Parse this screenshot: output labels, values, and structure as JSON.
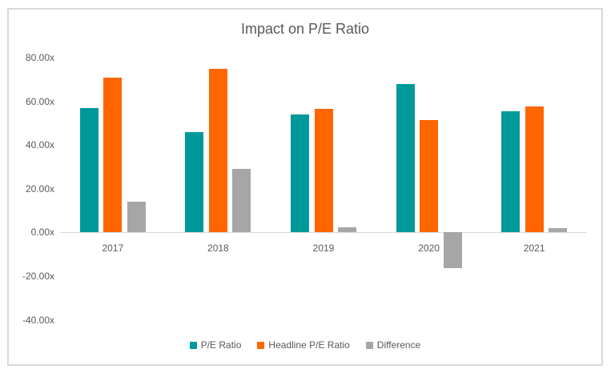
{
  "chart_data": {
    "type": "bar",
    "title": "Impact on P/E Ratio",
    "categories": [
      "2017",
      "2018",
      "2019",
      "2020",
      "2021"
    ],
    "series": [
      {
        "name": "P/E Ratio",
        "color": "#009999",
        "values": [
          57.0,
          46.0,
          54.0,
          68.0,
          55.5
        ]
      },
      {
        "name": "Headline P/E Ratio",
        "color": "#FF6600",
        "values": [
          71.0,
          75.0,
          56.5,
          51.5,
          57.5
        ]
      },
      {
        "name": "Difference",
        "color": "#A6A6A6",
        "values": [
          14.0,
          29.0,
          2.5,
          -16.5,
          2.0
        ]
      }
    ],
    "ylim": [
      -40,
      80
    ],
    "ytick_values": [
      80,
      60,
      40,
      20,
      0,
      -20,
      -40
    ],
    "ytick_labels": [
      "80.00x",
      "60.00x",
      "40.00x",
      "20.00x",
      "0.00x",
      "-20.00x",
      "-40.00x"
    ],
    "value_suffix": "x",
    "grid": false,
    "legend_position": "bottom",
    "colors": {
      "frame_border": "#D9D9D9",
      "axis_line": "#D9D9D9",
      "text": "#595959",
      "background": "#FFFFFF"
    }
  }
}
